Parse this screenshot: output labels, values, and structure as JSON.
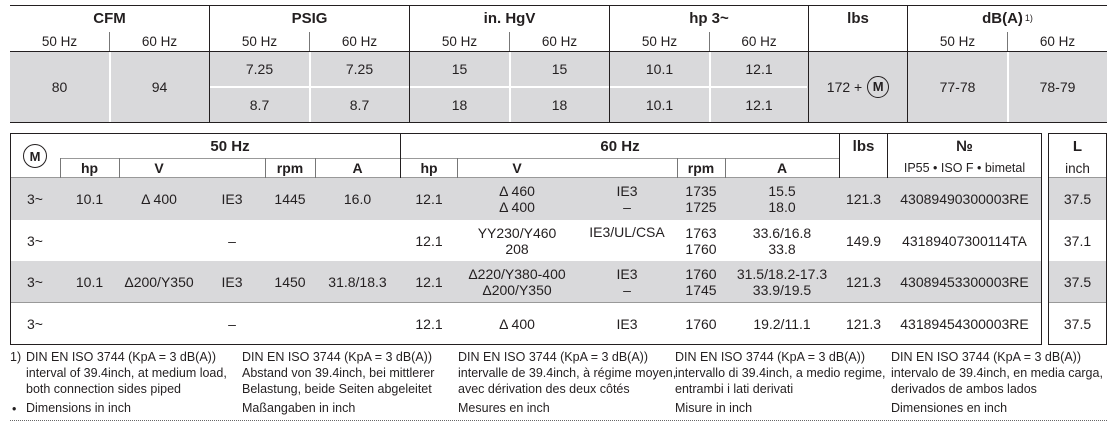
{
  "top_table": {
    "headers": [
      "CFM",
      "PSIG",
      "in. HgV",
      "hp 3~",
      "lbs",
      "dB(A)"
    ],
    "dba_sup": "1)",
    "hz": [
      "50 Hz",
      "60 Hz"
    ],
    "cfm": [
      "80",
      "94"
    ],
    "psig": [
      [
        "7.25",
        "7.25"
      ],
      [
        "8.7",
        "8.7"
      ]
    ],
    "hgv": [
      [
        "15",
        "15"
      ],
      [
        "18",
        "18"
      ]
    ],
    "hp": [
      [
        "10.1",
        "12.1"
      ],
      [
        "10.1",
        "12.1"
      ]
    ],
    "lbs_text": "172 +",
    "motor_symbol": "M",
    "dba": [
      "77-78",
      "78-79"
    ]
  },
  "bottom_table": {
    "motor_symbol": "M",
    "group_50": "50 Hz",
    "group_60": "60 Hz",
    "col_hp": "hp",
    "col_v": "V",
    "col_rpm": "rpm",
    "col_a": "A",
    "col_lbs": "lbs",
    "col_no": "№",
    "col_no_sub": "IP55 • ISO F • bimetal",
    "col_l": "L",
    "col_l_sub": "inch",
    "rows": [
      {
        "phase": "3~",
        "hp50": "10.1",
        "v50": "Δ 400",
        "ie50": "IE3",
        "rpm50": "1445",
        "a50": "16.0",
        "hp60": "12.1",
        "v60": [
          "Δ 460",
          "Δ 400"
        ],
        "ie60": [
          "IE3",
          "–"
        ],
        "rpm60": [
          "1735",
          "1725"
        ],
        "a60": [
          "15.5",
          "18.0"
        ],
        "lbs": "121.3",
        "no": "43089490300003RE",
        "l": "37.5"
      },
      {
        "phase": "3~",
        "dash50": "–",
        "hp60": "12.1",
        "v60": [
          "YY230/Y460",
          "208"
        ],
        "ie60": [
          "IE3/UL/CSA",
          ""
        ],
        "rpm60": [
          "1763",
          "1760"
        ],
        "a60": [
          "33.6/16.8",
          "33.8"
        ],
        "lbs": "149.9",
        "no": "43189407300114TA",
        "l": "37.1"
      },
      {
        "phase": "3~",
        "hp50": "10.1",
        "v50": "Δ200/Y350",
        "ie50": "IE3",
        "rpm50": "1450",
        "a50": "31.8/18.3",
        "hp60": "12.1",
        "v60": [
          "Δ220/Y380-400",
          "Δ200/Y350"
        ],
        "ie60": [
          "IE3",
          "–"
        ],
        "rpm60": [
          "1760",
          "1745"
        ],
        "a60": [
          "31.5/18.2-17.3",
          "33.9/19.5"
        ],
        "lbs": "121.3",
        "no": "43089453300003RE",
        "l": "37.5"
      },
      {
        "phase": "3~",
        "dash50": "–",
        "hp60": "12.1",
        "v60": [
          "Δ 400"
        ],
        "ie60": [
          "IE3"
        ],
        "rpm60": [
          "1760"
        ],
        "a60": [
          "19.2/11.1"
        ],
        "lbs": "121.3",
        "no": "43189454300003RE",
        "l": "37.5"
      }
    ]
  },
  "footnotes": {
    "marker1": "1)",
    "marker2": "•",
    "cols": [
      {
        "l1": "DIN EN ISO 3744 (KpA = 3 dB(A))",
        "l2": "interval of 39.4inch, at medium load,",
        "l3": "both connection sides piped",
        "l4": "Dimensions in inch"
      },
      {
        "l1": "DIN EN ISO 3744 (KpA = 3 dB(A))",
        "l2": "Abstand von 39.4inch, bei mittlerer",
        "l3": "Belastung, beide Seiten abgeleitet",
        "l4": "Maßangaben in inch"
      },
      {
        "l1": "DIN EN ISO 3744 (KpA = 3 dB(A))",
        "l2": "intervalle de 39.4inch, à régime moyen,",
        "l3": "avec dérivation des deux côtés",
        "l4": "Mesures en inch"
      },
      {
        "l1": "DIN EN ISO 3744 (KpA = 3 dB(A))",
        "l2": "intervallo di 39.4inch, a medio regime,",
        "l3": "entrambi i lati derivati",
        "l4": "Misure in inch"
      },
      {
        "l1": "DIN EN ISO 3744 (KpA = 3 dB(A))",
        "l2": "intervalo de 39.4inch, en media carga,",
        "l3": "derivados de ambos lados",
        "l4": "Dimensiones en inch"
      }
    ]
  }
}
